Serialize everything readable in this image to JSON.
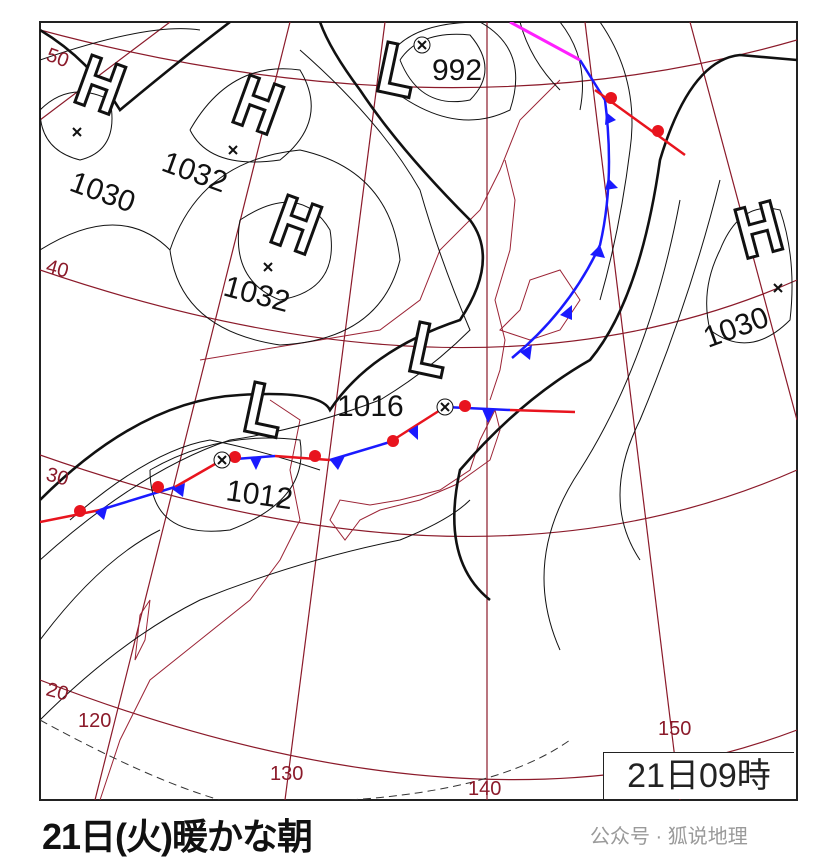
{
  "map": {
    "pressure_systems": [
      {
        "type": "H",
        "pressure": "1030"
      },
      {
        "type": "H",
        "pressure": "1032"
      },
      {
        "type": "H",
        "pressure": "1032"
      },
      {
        "type": "L",
        "pressure": "992"
      },
      {
        "type": "L",
        "pressure": "1016"
      },
      {
        "type": "L",
        "pressure": "1012"
      },
      {
        "type": "H",
        "pressure": "1030"
      }
    ],
    "latitude_labels": [
      "50",
      "40",
      "30",
      "20"
    ],
    "longitude_labels": [
      "120",
      "130",
      "140",
      "150"
    ],
    "colors": {
      "warm_front": "#e8141e",
      "cold_front": "#1a1aff",
      "occluded_front": "#ff20ff",
      "grid": "#8b1a2a",
      "isobar": "#111111"
    }
  },
  "date_box": "21日09時",
  "title": "21日(火)暖かな朝",
  "watermark": "公众号 · 狐说地理"
}
